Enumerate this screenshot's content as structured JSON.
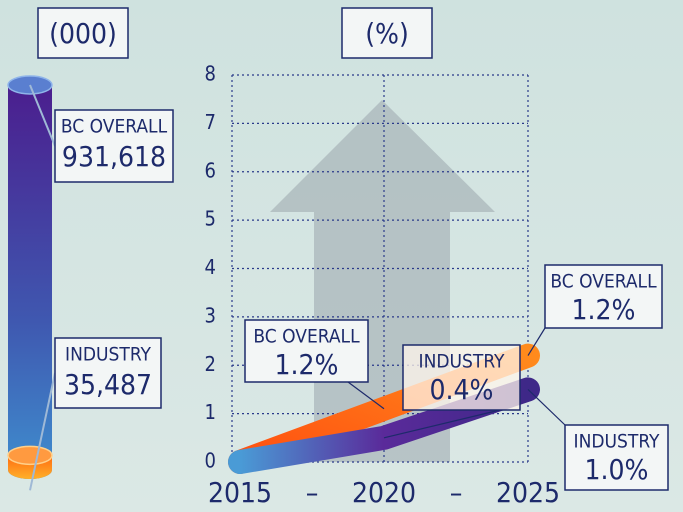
{
  "chart_data": [
    {
      "type": "bar",
      "title": "(000)",
      "categories": [
        "BC OVERALL",
        "INDUSTRY"
      ],
      "values": [
        931618,
        35487
      ],
      "value_labels": [
        "931,618",
        "35,487"
      ],
      "colors": [
        "#4b1e8e",
        "#ff7b16"
      ]
    },
    {
      "type": "line",
      "title": "(%)",
      "x": [
        2015,
        2020,
        2025
      ],
      "xlim": [
        2015,
        2025
      ],
      "xticks": [
        2015,
        2020,
        2025
      ],
      "x_separator": "–",
      "ylim": [
        0,
        8
      ],
      "yticks": [
        0,
        1,
        2,
        3,
        4,
        5,
        6,
        7,
        8
      ],
      "grid": true,
      "series": [
        {
          "name": "BC OVERALL",
          "color": "#ff6a10",
          "values": [
            0,
            1.1,
            2.2
          ]
        },
        {
          "name": "INDUSTRY",
          "color": "#5a2a9a",
          "values": [
            0,
            0.5,
            1.5
          ]
        }
      ],
      "annotations": [
        {
          "series": "BC OVERALL",
          "x": 2020,
          "text": "1.2%"
        },
        {
          "series": "BC OVERALL",
          "x": 2025,
          "text": "1.2%"
        },
        {
          "series": "INDUSTRY",
          "x": 2020,
          "text": "0.4%"
        },
        {
          "series": "INDUSTRY",
          "x": 2025,
          "text": "1.0%"
        }
      ]
    }
  ]
}
